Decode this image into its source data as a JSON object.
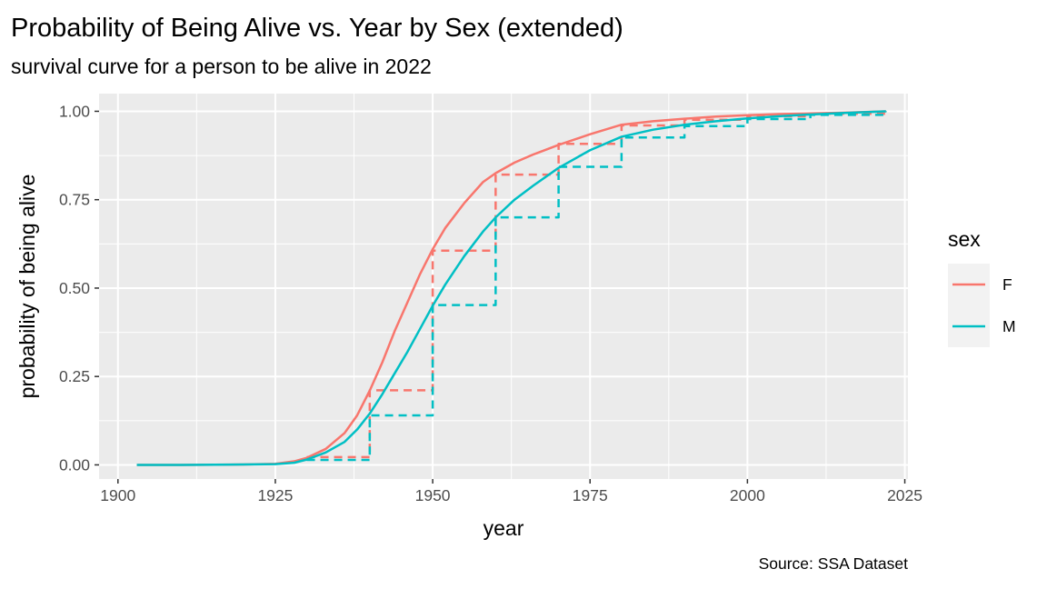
{
  "chart_data": {
    "type": "line",
    "title": "Probability of Being Alive vs. Year by Sex (extended)",
    "subtitle": "survival curve for a person to be alive in 2022",
    "xlabel": "year",
    "ylabel": "probability of being alive",
    "caption": "Source: SSA Dataset",
    "xlim": [
      1897,
      2025.5
    ],
    "ylim": [
      -0.04,
      1.05
    ],
    "x_ticks": [
      1900,
      1925,
      1950,
      1975,
      2000,
      2025
    ],
    "y_ticks": [
      0,
      0.25,
      0.5,
      0.75,
      1.0
    ],
    "y_tick_labels": [
      "0.00",
      "0.25",
      "0.50",
      "0.75",
      "1.00"
    ],
    "grid": true,
    "legend": {
      "title": "sex",
      "position": "right"
    },
    "series": [
      {
        "name": "F",
        "color": "#F8766D",
        "style": "solid",
        "x": [
          1903,
          1910,
          1920,
          1925,
          1928,
          1930,
          1933,
          1936,
          1938,
          1940,
          1942,
          1944,
          1946,
          1948,
          1950,
          1952,
          1955,
          1958,
          1960,
          1963,
          1966,
          1970,
          1975,
          1980,
          1985,
          1990,
          1995,
          2000,
          2005,
          2010,
          2015,
          2022
        ],
        "values": [
          0,
          0,
          0.001,
          0.003,
          0.01,
          0.02,
          0.045,
          0.09,
          0.14,
          0.21,
          0.29,
          0.38,
          0.46,
          0.54,
          0.61,
          0.67,
          0.74,
          0.8,
          0.825,
          0.855,
          0.878,
          0.905,
          0.935,
          0.962,
          0.972,
          0.979,
          0.985,
          0.989,
          0.992,
          0.994,
          0.996,
          1.0
        ]
      },
      {
        "name": "M",
        "color": "#00BFC4",
        "style": "solid",
        "x": [
          1903,
          1910,
          1920,
          1925,
          1928,
          1930,
          1933,
          1936,
          1938,
          1940,
          1942,
          1944,
          1946,
          1948,
          1950,
          1952,
          1955,
          1958,
          1960,
          1963,
          1966,
          1970,
          1975,
          1980,
          1985,
          1990,
          1995,
          2000,
          2005,
          2010,
          2015,
          2022
        ],
        "values": [
          0,
          0,
          0.001,
          0.002,
          0.006,
          0.015,
          0.035,
          0.065,
          0.1,
          0.145,
          0.2,
          0.26,
          0.32,
          0.385,
          0.45,
          0.51,
          0.59,
          0.66,
          0.7,
          0.75,
          0.79,
          0.84,
          0.89,
          0.928,
          0.948,
          0.962,
          0.972,
          0.98,
          0.986,
          0.991,
          0.995,
          1.0
        ]
      },
      {
        "name": "F",
        "color": "#F8766D",
        "style": "dashed",
        "x": [
          1930,
          1940,
          1950,
          1960,
          1970,
          1980,
          1990,
          2000,
          2010,
          2022
        ],
        "values": [
          0.022,
          0.211,
          0.606,
          0.821,
          0.908,
          0.96,
          0.976,
          0.986,
          0.993,
          1.0
        ]
      },
      {
        "name": "M",
        "color": "#00BFC4",
        "style": "dashed",
        "x": [
          1930,
          1940,
          1950,
          1960,
          1970,
          1980,
          1990,
          2000,
          2010,
          2022
        ],
        "values": [
          0.014,
          0.14,
          0.452,
          0.7,
          0.843,
          0.926,
          0.958,
          0.978,
          0.99,
          1.0
        ]
      }
    ]
  }
}
